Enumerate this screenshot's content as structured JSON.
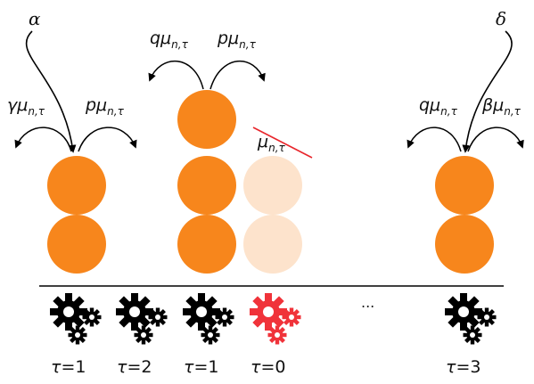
{
  "colors": {
    "active_ball": "#f7861c",
    "faded_ball": "#fde3cc",
    "gear_normal": "#000000",
    "gear_failed": "#f0333a",
    "strike": "#e8262c",
    "axis": "#000000"
  },
  "top_labels": {
    "alpha": "α",
    "delta": "δ"
  },
  "rates": {
    "col1_left": {
      "coef": "γμ",
      "sub": "n,τ"
    },
    "col1_right": {
      "coef": "pμ",
      "sub": "n,τ"
    },
    "col3_left": {
      "coef": "qμ",
      "sub": "n,τ"
    },
    "col3_right": {
      "coef": "pμ",
      "sub": "n,τ"
    },
    "col4_struck": {
      "coef": "μ",
      "sub": "n,τ"
    },
    "col6_left": {
      "coef": "qμ",
      "sub": "n,τ"
    },
    "col6_right": {
      "coef": "βμ",
      "sub": "n,τ"
    }
  },
  "ellipsis": "...",
  "servers": [
    {
      "tau_symbol": "τ",
      "tau_value": "=1",
      "failed": false
    },
    {
      "tau_symbol": "τ",
      "tau_value": "=2",
      "failed": false
    },
    {
      "tau_symbol": "τ",
      "tau_value": "=1",
      "failed": false
    },
    {
      "tau_symbol": "τ",
      "tau_value": "=0",
      "failed": true
    },
    {
      "tau_symbol": "τ",
      "tau_value": "=3",
      "failed": false
    }
  ],
  "queues": {
    "server1_balls": 2,
    "server2_balls": 0,
    "server3_balls": 3,
    "server4_balls": 2,
    "server5_balls": 2
  }
}
